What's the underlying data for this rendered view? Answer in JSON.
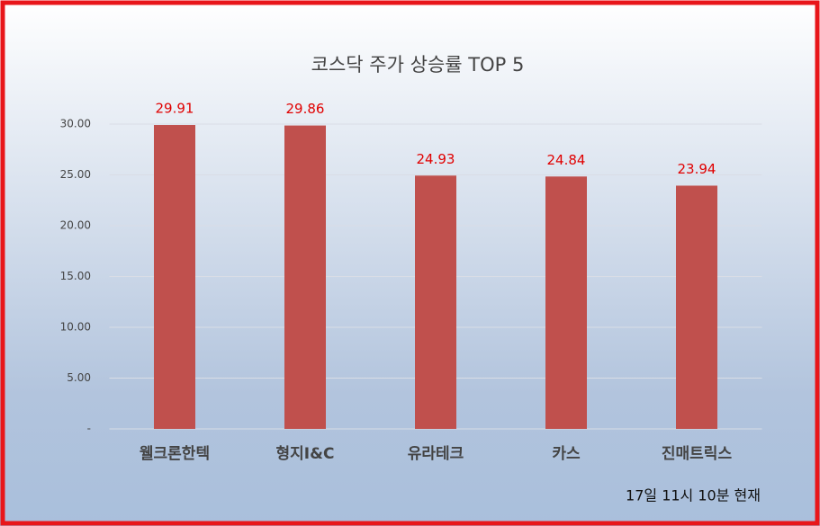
{
  "chart_data": {
    "type": "bar",
    "title": "코스닥 주가 상승률 TOP 5",
    "categories": [
      "웰크론한텍",
      "형지I&C",
      "유라테크",
      "카스",
      "진매트릭스"
    ],
    "values": [
      29.91,
      29.86,
      24.93,
      24.84,
      23.94
    ],
    "color": "#c0504d",
    "ylim": [
      0,
      30
    ],
    "yticks": [
      {
        "value": 0,
        "label": "-"
      },
      {
        "value": 5,
        "label": "5.00"
      },
      {
        "value": 10,
        "label": "10.00"
      },
      {
        "value": 15,
        "label": "15.00"
      },
      {
        "value": 20,
        "label": "20.00"
      },
      {
        "value": 25,
        "label": "25.00"
      },
      {
        "value": 30,
        "label": "30.00"
      }
    ],
    "grid": true,
    "annotation": "17일 11시  10분 현재"
  }
}
